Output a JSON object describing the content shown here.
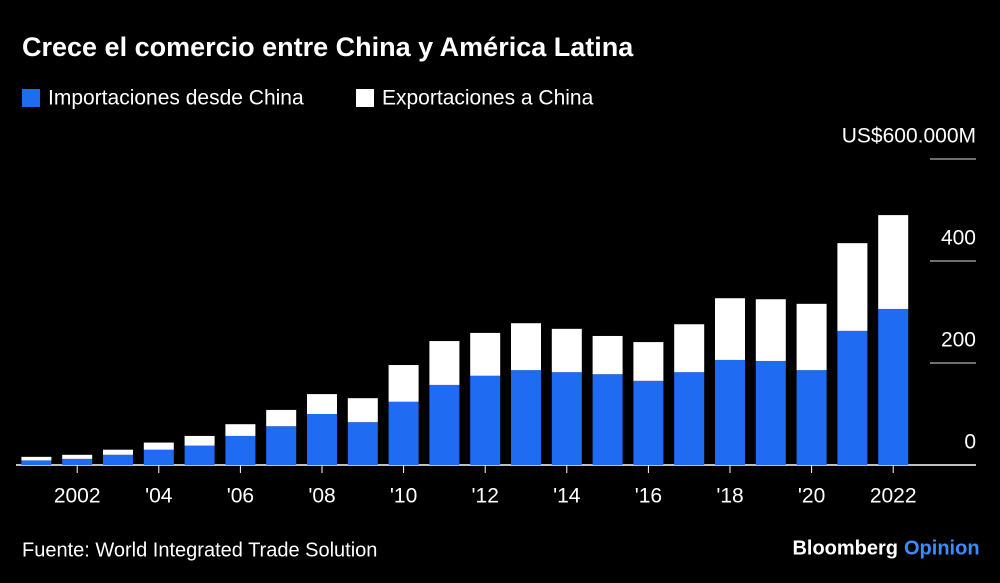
{
  "chart_data": {
    "type": "stacked-bar",
    "title": "Crece el comercio entre China y América Latina",
    "categories": [
      null,
      "2002",
      null,
      "'04",
      null,
      "'06",
      null,
      "'08",
      null,
      "'10",
      null,
      "'12",
      null,
      "'14",
      null,
      "'16",
      null,
      "'18",
      null,
      "'20",
      null,
      "2022"
    ],
    "series": [
      {
        "name": "Importaciones desde China",
        "color": "#1f6cf2",
        "values": [
          9,
          12,
          20,
          30,
          38,
          57,
          76,
          100,
          84,
          124,
          157,
          175,
          186,
          182,
          178,
          165,
          182,
          206,
          204,
          186,
          263,
          306
        ]
      },
      {
        "name": "Exportaciones a China",
        "color": "#ffffff",
        "values": [
          7,
          8,
          10,
          14,
          19,
          23,
          32,
          39,
          47,
          72,
          86,
          84,
          92,
          85,
          75,
          76,
          94,
          121,
          121,
          130,
          172,
          184
        ]
      }
    ],
    "ylim": [
      0,
      600
    ],
    "yticks": [
      0,
      200,
      400,
      {
        "value": 600,
        "label": "US$600.000M"
      }
    ],
    "source": "Fuente: World Integrated Trade Solution",
    "brand": [
      "Bloomberg",
      "Opinion"
    ]
  }
}
